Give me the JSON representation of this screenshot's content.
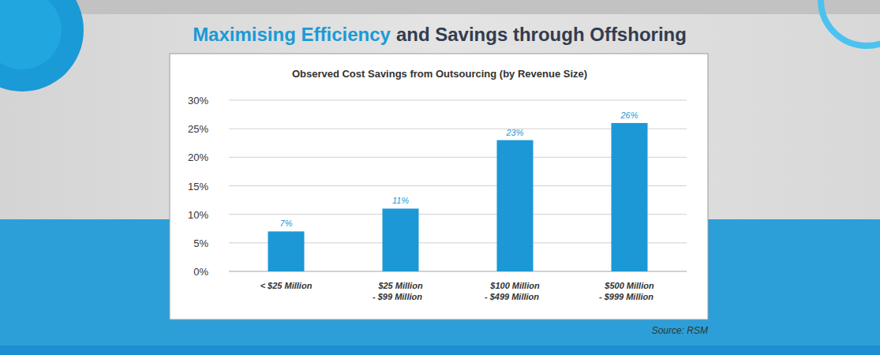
{
  "header": {
    "title": [
      "Maximising Efficiency",
      "and Savings through Offshoring"
    ]
  },
  "chart_data": {
    "type": "bar",
    "title": "Observed Cost Savings from Outsourcing (by Revenue Size)",
    "categories": [
      "< $25 Million",
      "$25 Million - $99 Million",
      "$100 Million - $499 Million",
      "$500 Million - $999 Million"
    ],
    "values": [
      7,
      11,
      23,
      26
    ],
    "value_labels": [
      "7%",
      "11%",
      "23%",
      "26%"
    ],
    "color": "#1b98d5",
    "ylim": [
      0,
      30
    ],
    "yticks": [
      {
        "value": 0,
        "label": "0%"
      },
      {
        "value": 5,
        "label": "5%"
      },
      {
        "value": 10,
        "label": "10%"
      },
      {
        "value": 15,
        "label": "15%"
      },
      {
        "value": 20,
        "label": "20%"
      },
      {
        "value": 25,
        "label": "25%"
      },
      {
        "value": 30,
        "label": "30%"
      }
    ],
    "grid": true,
    "data_labels": true,
    "source": "Source: RSM"
  }
}
